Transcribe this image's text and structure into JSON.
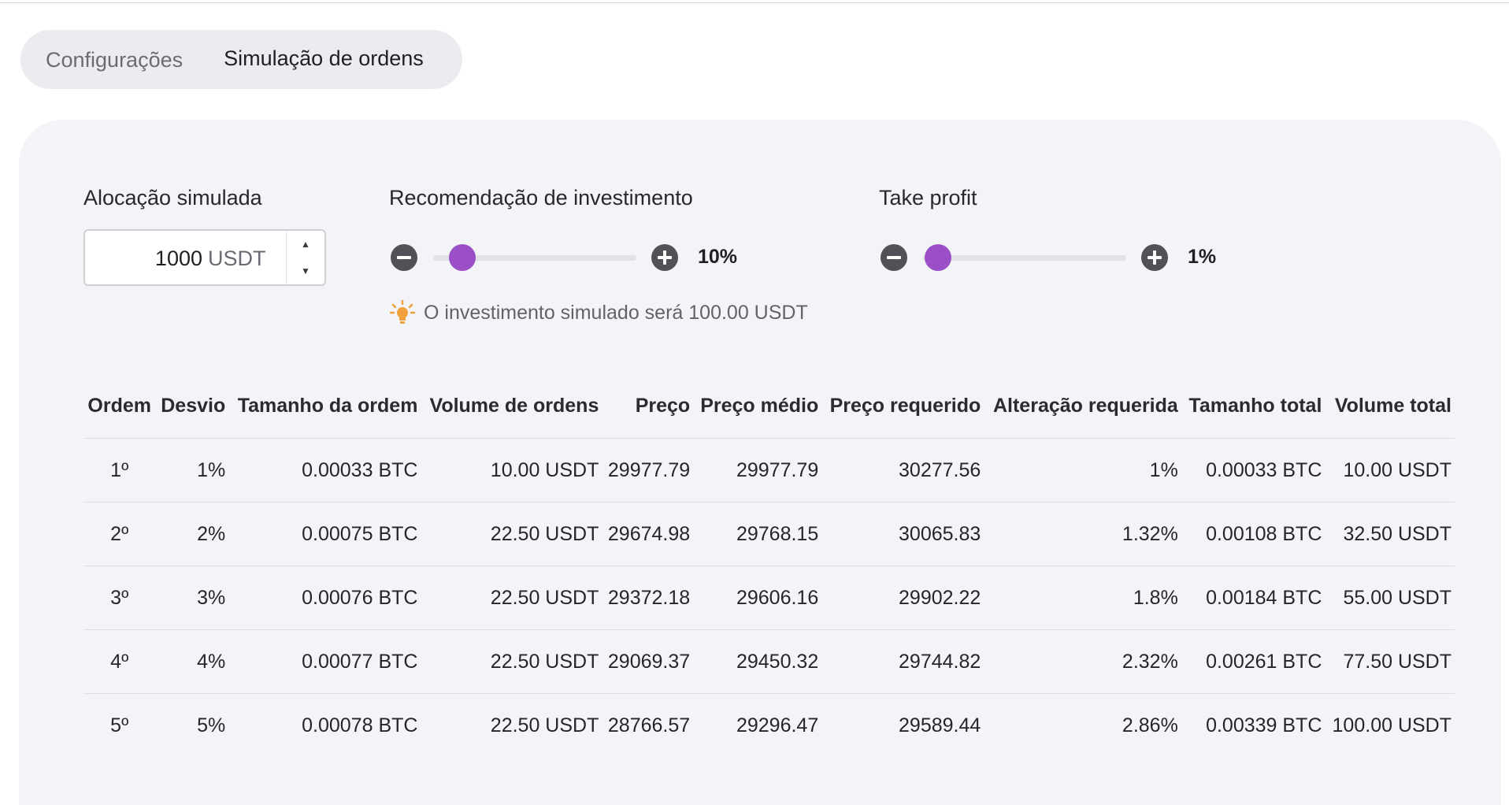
{
  "tabs": [
    {
      "label": "Configurações",
      "active": false
    },
    {
      "label": "Simulação de ordens",
      "active": true
    }
  ],
  "allocation": {
    "label": "Alocação simulada",
    "value": "1000",
    "unit": "USDT"
  },
  "investment_recommendation": {
    "label": "Recomendação de investimento",
    "value_label": "10%",
    "value_percent": 10
  },
  "take_profit": {
    "label": "Take profit",
    "value_label": "1%",
    "value_percent": 1
  },
  "hint": {
    "icon": "lightbulb-icon",
    "text": "O investimento simulado será 100.00 USDT"
  },
  "colors": {
    "accent": "#9b4fc7",
    "hint_icon": "#f0a03c"
  },
  "table": {
    "columns": [
      "Ordem",
      "Desvio",
      "Tamanho da ordem",
      "Volume de ordens",
      "Preço",
      "Preço médio",
      "Preço requerido",
      "Alteração requerida",
      "Tamanho total",
      "Volume total"
    ],
    "rows": [
      [
        "1º",
        "1%",
        "0.00033 BTC",
        "10.00 USDT",
        "29977.79",
        "29977.79",
        "30277.56",
        "1%",
        "0.00033 BTC",
        "10.00 USDT"
      ],
      [
        "2º",
        "2%",
        "0.00075 BTC",
        "22.50 USDT",
        "29674.98",
        "29768.15",
        "30065.83",
        "1.32%",
        "0.00108 BTC",
        "32.50 USDT"
      ],
      [
        "3º",
        "3%",
        "0.00076 BTC",
        "22.50 USDT",
        "29372.18",
        "29606.16",
        "29902.22",
        "1.8%",
        "0.00184 BTC",
        "55.00 USDT"
      ],
      [
        "4º",
        "4%",
        "0.00077 BTC",
        "22.50 USDT",
        "29069.37",
        "29450.32",
        "29744.82",
        "2.32%",
        "0.00261 BTC",
        "77.50 USDT"
      ],
      [
        "5º",
        "5%",
        "0.00078 BTC",
        "22.50 USDT",
        "28766.57",
        "29296.47",
        "29589.44",
        "2.86%",
        "0.00339 BTC",
        "100.00 USDT"
      ]
    ]
  }
}
